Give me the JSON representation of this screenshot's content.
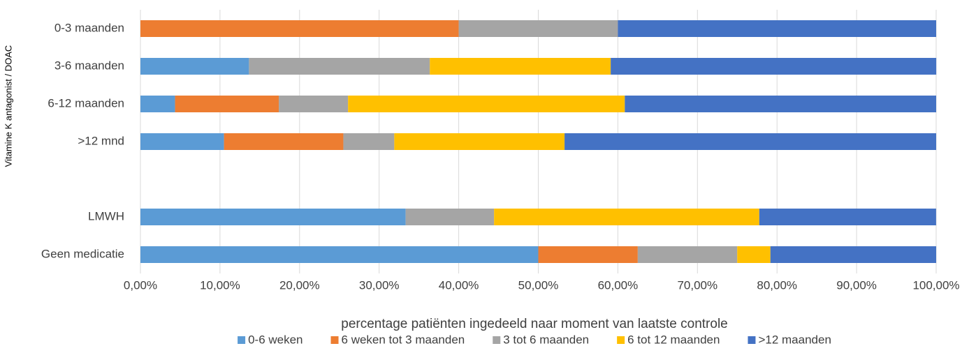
{
  "chart_data": {
    "type": "bar",
    "orientation": "horizontal",
    "stacked": true,
    "xlabel": "percentage patiënten ingedeeld naar moment van laatste controle",
    "ylabel": "Vitamine K antagonist / DOAC",
    "categories": [
      "0-3 maanden",
      "3-6 maanden",
      "6-12 maanden",
      ">12 mnd",
      null,
      "LMWH",
      "Geen medicatie"
    ],
    "series": [
      {
        "name": "0-6 weken",
        "color": "#5b9bd5",
        "values": [
          0,
          13.64,
          4.35,
          10.5,
          null,
          33.33,
          50
        ]
      },
      {
        "name": "6 weken tot 3 maanden",
        "color": "#ed7d31",
        "values": [
          40,
          0,
          13.04,
          15.0,
          null,
          0,
          12.5
        ]
      },
      {
        "name": "3 tot 6 maanden",
        "color": "#a5a5a5",
        "values": [
          20,
          22.73,
          8.7,
          6.4,
          null,
          11.11,
          12.5
        ]
      },
      {
        "name": "6 tot 12 maanden",
        "color": "#ffc000",
        "values": [
          0,
          22.73,
          34.78,
          21.4,
          null,
          33.33,
          4.17
        ]
      },
      {
        "name": ">12 maanden",
        "color": "#4472c4",
        "values": [
          40,
          40.91,
          39.13,
          46.7,
          null,
          22.22,
          20.83
        ]
      }
    ],
    "xlim": [
      0,
      100
    ],
    "xticks": [
      {
        "value": 0,
        "label": "0,00%"
      },
      {
        "value": 10,
        "label": "10,00%"
      },
      {
        "value": 20,
        "label": "20,00%"
      },
      {
        "value": 30,
        "label": "30,00%"
      },
      {
        "value": 40,
        "label": "40,00%"
      },
      {
        "value": 50,
        "label": "50,00%"
      },
      {
        "value": 60,
        "label": "60,00%"
      },
      {
        "value": 70,
        "label": "70,00%"
      },
      {
        "value": 80,
        "label": "80,00%"
      },
      {
        "value": 90,
        "label": "90,00%"
      },
      {
        "value": 100,
        "label": "100,00%"
      }
    ],
    "grid": true,
    "legend": "bottom"
  }
}
